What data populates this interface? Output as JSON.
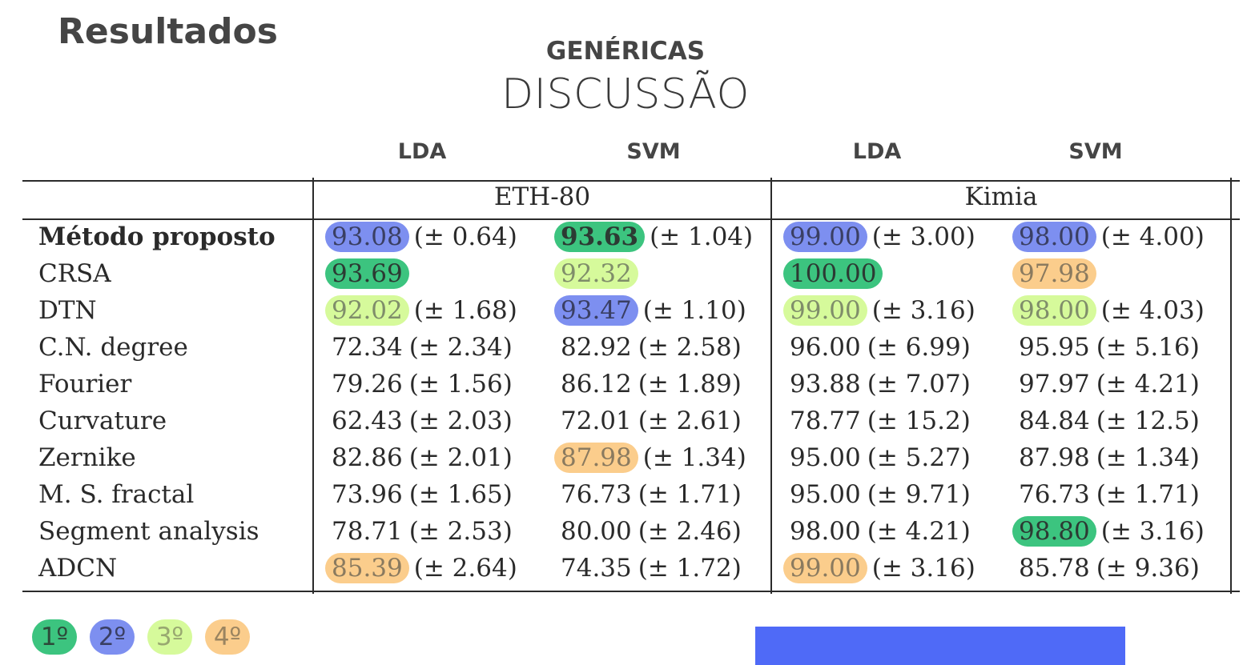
{
  "title": "Resultados",
  "subtitle": "GENÉRICAS",
  "heading": "DISCUSSÃO",
  "classifiers": [
    "LDA",
    "SVM",
    "LDA",
    "SVM"
  ],
  "datasets": [
    "ETH-80",
    "Kimia"
  ],
  "colors": {
    "rank1": "#3cc47f",
    "rank2": "#7d8ff0",
    "rank3": "#d6fa9b",
    "rank4": "#fbcd8c",
    "accent_box": "#4f6af7"
  },
  "rows": [
    {
      "method": "Método proposto",
      "bold": true,
      "cells": [
        {
          "value": "93.08",
          "sd": "(± 0.64)",
          "rank": 2
        },
        {
          "value": "93.63",
          "sd": "(± 1.04)",
          "rank": 1,
          "bold": true
        },
        {
          "value": "99.00",
          "sd": "(± 3.00)",
          "rank": 2
        },
        {
          "value": "98.00",
          "sd": "(± 4.00)",
          "rank": 2
        }
      ]
    },
    {
      "method": "CRSA",
      "cells": [
        {
          "value": "93.69",
          "sd": "",
          "rank": 1
        },
        {
          "value": "92.32",
          "sd": "",
          "rank": 3
        },
        {
          "value": "100.00",
          "sd": "",
          "rank": 1
        },
        {
          "value": "97.98",
          "sd": "",
          "rank": 4
        }
      ]
    },
    {
      "method": "DTN",
      "cells": [
        {
          "value": "92.02",
          "sd": "(± 1.68)",
          "rank": 3
        },
        {
          "value": "93.47",
          "sd": "(± 1.10)",
          "rank": 2
        },
        {
          "value": "99.00",
          "sd": "(± 3.16)",
          "rank": 3
        },
        {
          "value": "98.00",
          "sd": "(± 4.03)",
          "rank": 3
        }
      ]
    },
    {
      "method": "C.N. degree",
      "cells": [
        {
          "value": "72.34",
          "sd": "(± 2.34)"
        },
        {
          "value": "82.92",
          "sd": "(± 2.58)"
        },
        {
          "value": "96.00",
          "sd": "(± 6.99)"
        },
        {
          "value": "95.95",
          "sd": "(± 5.16)"
        }
      ]
    },
    {
      "method": "Fourier",
      "cells": [
        {
          "value": "79.26",
          "sd": "(± 1.56)"
        },
        {
          "value": "86.12",
          "sd": "(± 1.89)"
        },
        {
          "value": "93.88",
          "sd": "(± 7.07)"
        },
        {
          "value": "97.97",
          "sd": "(± 4.21)"
        }
      ]
    },
    {
      "method": "Curvature",
      "cells": [
        {
          "value": "62.43",
          "sd": "(± 2.03)"
        },
        {
          "value": "72.01",
          "sd": "(± 2.61)"
        },
        {
          "value": "78.77",
          "sd": "(± 15.2)"
        },
        {
          "value": "84.84",
          "sd": "(± 12.5)"
        }
      ]
    },
    {
      "method": "Zernike",
      "cells": [
        {
          "value": "82.86",
          "sd": "(± 2.01)"
        },
        {
          "value": "87.98",
          "sd": "(± 1.34)",
          "rank": 4
        },
        {
          "value": "95.00",
          "sd": "(± 5.27)"
        },
        {
          "value": "87.98",
          "sd": "(± 1.34)"
        }
      ]
    },
    {
      "method": "M. S. fractal",
      "cells": [
        {
          "value": "73.96",
          "sd": "(± 1.65)"
        },
        {
          "value": "76.73",
          "sd": "(± 1.71)"
        },
        {
          "value": "95.00",
          "sd": "(± 9.71)"
        },
        {
          "value": "76.73",
          "sd": "(± 1.71)"
        }
      ]
    },
    {
      "method": "Segment analysis",
      "cells": [
        {
          "value": "78.71",
          "sd": "(± 2.53)"
        },
        {
          "value": "80.00",
          "sd": "(± 2.46)"
        },
        {
          "value": "98.00",
          "sd": "(± 4.21)"
        },
        {
          "value": "98.80",
          "sd": "(± 3.16)",
          "rank": 1
        }
      ]
    },
    {
      "method": "ADCN",
      "cells": [
        {
          "value": "85.39",
          "sd": "(± 2.64)",
          "rank": 4
        },
        {
          "value": "74.35",
          "sd": "(± 1.72)"
        },
        {
          "value": "99.00",
          "sd": "(± 3.16)",
          "rank": 4
        },
        {
          "value": "85.78",
          "sd": "(± 9.36)"
        }
      ]
    }
  ],
  "legend": [
    {
      "label": "1º",
      "rank": 1
    },
    {
      "label": "2º",
      "rank": 2
    },
    {
      "label": "3º",
      "rank": 3
    },
    {
      "label": "4º",
      "rank": 4
    }
  ]
}
